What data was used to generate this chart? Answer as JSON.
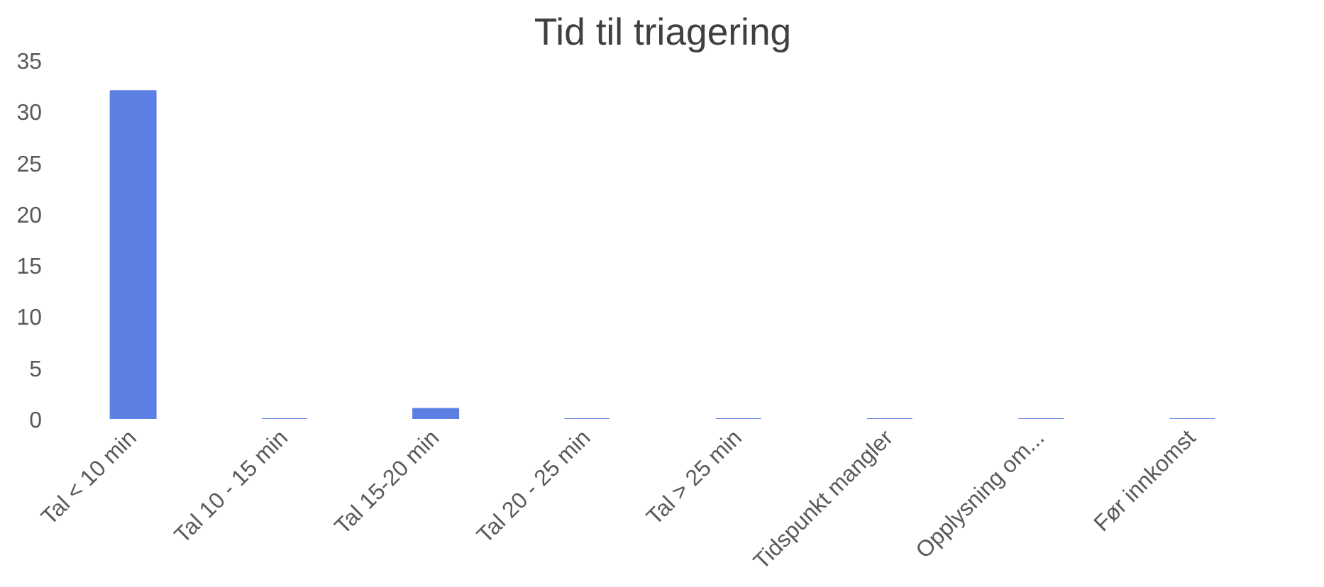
{
  "chart_data": {
    "type": "bar",
    "title": "Tid til triagering",
    "categories": [
      "Tal < 10 min",
      "Tal 10 - 15 min",
      "Tal 15-20 min",
      "Tal 20 - 25 min",
      "Tal > 25 min",
      "Tidspunkt mangler",
      "Opplysning om...",
      "Før innkomst"
    ],
    "values": [
      32,
      0,
      1,
      0,
      0,
      0,
      0,
      0
    ],
    "color": "#5b7fe3",
    "ylim": [
      0,
      35
    ],
    "yticks": [
      0,
      5,
      10,
      15,
      20,
      25,
      30,
      35
    ],
    "grid": false
  }
}
